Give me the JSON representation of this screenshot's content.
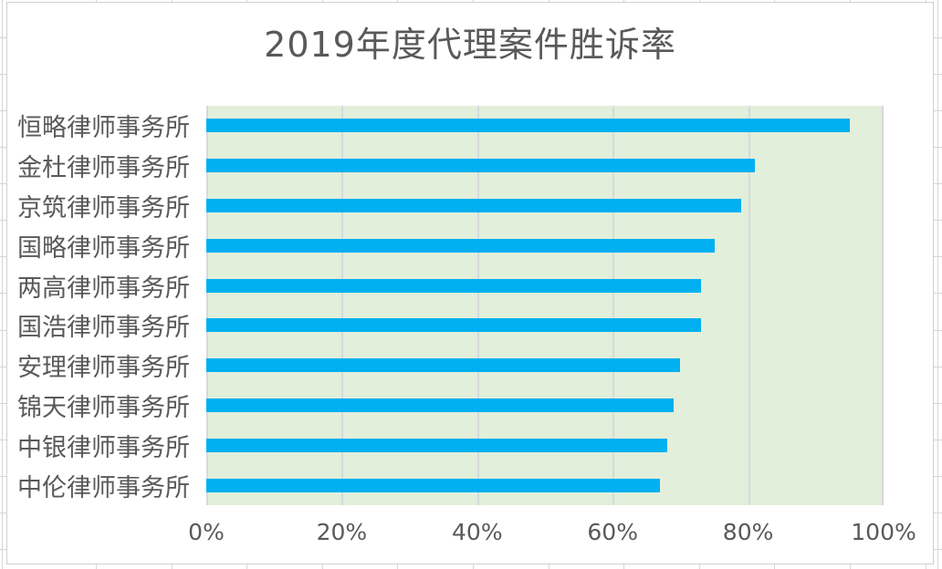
{
  "app": {
    "surface": "spreadsheet-chart"
  },
  "chart_data": {
    "type": "bar",
    "orientation": "horizontal",
    "title": "2019年度代理案件胜诉率",
    "categories": [
      "恒略律师事务所",
      "金杜律师事务所",
      "京筑律师事务所",
      "国略律师事务所",
      "两高律师事务所",
      "国浩律师事务所",
      "安理律师事务所",
      "锦天律师事务所",
      "中银律师事务所",
      "中伦律师事务所"
    ],
    "values": [
      95,
      81,
      79,
      75,
      73,
      73,
      70,
      69,
      68,
      67
    ],
    "unit": "%",
    "xlabel": "",
    "ylabel": "",
    "xlim": [
      0,
      100
    ],
    "x_tick_step": 20,
    "x_ticks": [
      "0%",
      "20%",
      "40%",
      "60%",
      "80%",
      "100%"
    ],
    "grid": true,
    "legend": false,
    "colors": {
      "bar": "#00B0F0",
      "plot_background": "#E2EFDA",
      "chart_background": "#ffffff",
      "gridline": "#d8d8de",
      "text": "#595959",
      "sheet_gridline": "#d6d6d6"
    }
  }
}
